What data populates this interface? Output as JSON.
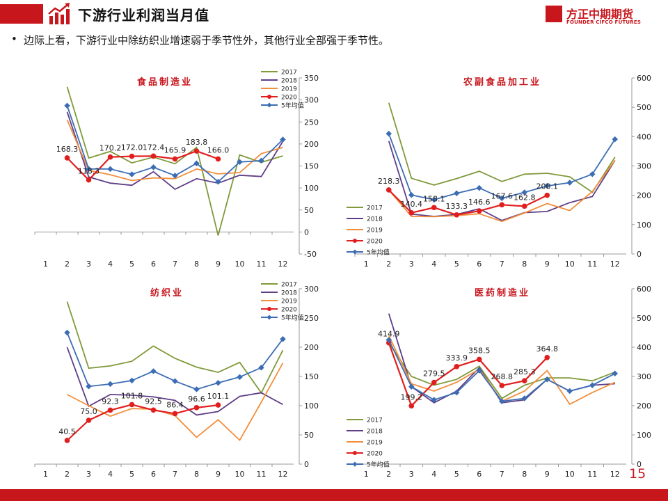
{
  "header": {
    "title": "下游行业利润当月值",
    "logo_cn": "方正中期期货",
    "logo_en": "FOUNDER CIFCO FUTURES"
  },
  "bullet": "边际上看，下游行业中除纺织业增速弱于季节性外，其他行业全部强于季节性。",
  "page_number": "15",
  "colors": {
    "2017": "#7f9a3a",
    "2018": "#5e3e86",
    "2019": "#f28e3d",
    "2020": "#e11e1e",
    "avg": "#3c6db4"
  },
  "chart_data": [
    {
      "type": "line",
      "title": "食品制造业",
      "categories": [
        "1",
        "2",
        "3",
        "4",
        "5",
        "6",
        "7",
        "8",
        "9",
        "10",
        "11",
        "12"
      ],
      "ylim": [
        -50,
        350
      ],
      "yticks": [
        "-50",
        "0",
        "50",
        "100",
        "150",
        "200",
        "250",
        "300",
        "350"
      ],
      "legend": "top-right",
      "series": [
        {
          "name": "2017",
          "values": [
            null,
            330,
            168,
            183,
            157,
            170,
            155,
            192,
            -8,
            175,
            158,
            173
          ]
        },
        {
          "name": "2018",
          "values": [
            null,
            273,
            125,
            111,
            106,
            137,
            97,
            121,
            111,
            129,
            126,
            206
          ]
        },
        {
          "name": "2019",
          "values": [
            null,
            255,
            140,
            130,
            117,
            123,
            121,
            143,
            132,
            135,
            178,
            192
          ]
        },
        {
          "name": "2020",
          "values": [
            null,
            168.3,
            118.3,
            170.2,
            172.0,
            172.4,
            165.9,
            183.8,
            166.0,
            null,
            null,
            null
          ],
          "labels": [
            "",
            "168.3",
            "118.3",
            "170.2",
            "172.0",
            "172.4",
            "165.9",
            "183.8",
            "166.0",
            "",
            "",
            ""
          ]
        },
        {
          "name": "5年均值",
          "values": [
            null,
            287,
            143,
            143,
            131,
            147,
            128,
            156,
            114,
            159,
            162,
            210
          ]
        }
      ]
    },
    {
      "type": "line",
      "title": "农副食品加工业",
      "categories": [
        "1",
        "2",
        "3",
        "4",
        "5",
        "6",
        "7",
        "8",
        "9",
        "10",
        "11",
        "12"
      ],
      "ylim": [
        0,
        600
      ],
      "yticks": [
        "0",
        "100",
        "200",
        "300",
        "400",
        "500",
        "600"
      ],
      "legend": "bottom-left",
      "series": [
        {
          "name": "2017",
          "values": [
            null,
            515,
            258,
            235,
            257,
            282,
            247,
            272,
            275,
            263,
            210,
            330
          ]
        },
        {
          "name": "2018",
          "values": [
            null,
            385,
            136,
            128,
            135,
            154,
            114,
            141,
            145,
            175,
            196,
            319
          ]
        },
        {
          "name": "2019",
          "values": [
            null,
            218,
            128,
            127,
            131,
            137,
            111,
            140,
            172,
            148,
            213,
            319
          ]
        },
        {
          "name": "2020",
          "values": [
            null,
            218.3,
            140.4,
            158.1,
            133.3,
            146.6,
            167.6,
            162.8,
            200.1,
            null,
            null,
            null
          ],
          "labels": [
            "",
            "218.3",
            "140.4",
            "158.1",
            "133.3",
            "146.6",
            "167.6",
            "162.8",
            "200.1",
            "",
            "",
            ""
          ]
        },
        {
          "name": "5年均值",
          "values": [
            null,
            410,
            201,
            185,
            207,
            225,
            190,
            210,
            232,
            243,
            272,
            391
          ]
        }
      ]
    },
    {
      "type": "line",
      "title": "纺织业",
      "categories": [
        "1",
        "2",
        "3",
        "4",
        "5",
        "6",
        "7",
        "8",
        "9",
        "10",
        "11",
        "12"
      ],
      "ylim": [
        0,
        300
      ],
      "yticks": [
        "0",
        "50",
        "100",
        "150",
        "200",
        "250",
        "300"
      ],
      "legend": "top-right",
      "series": [
        {
          "name": "2017",
          "values": [
            null,
            278,
            164,
            168,
            176,
            202,
            181,
            166,
            157,
            174,
            122,
            195
          ]
        },
        {
          "name": "2018",
          "values": [
            null,
            200,
            99,
            119,
            118,
            115,
            109,
            84,
            90,
            116,
            122,
            102
          ]
        },
        {
          "name": "2019",
          "values": [
            null,
            119,
            100,
            82,
            95,
            94,
            83,
            46,
            76,
            41,
            106,
            173
          ]
        },
        {
          "name": "2020",
          "values": [
            null,
            40.5,
            75.0,
            92.3,
            101.8,
            92.5,
            86.4,
            96.6,
            101.1,
            null,
            null,
            null
          ],
          "labels": [
            "",
            "40.5",
            "75.0",
            "92.3",
            "101.8",
            "92.5",
            "86.4",
            "96.6",
            "101.1",
            "",
            "",
            ""
          ]
        },
        {
          "name": "5年均值",
          "values": [
            null,
            225,
            133,
            137,
            143,
            159,
            142,
            128,
            139,
            149,
            165,
            214
          ]
        }
      ]
    },
    {
      "type": "line",
      "title": "医药制造业",
      "categories": [
        "1",
        "2",
        "3",
        "4",
        "5",
        "6",
        "7",
        "8",
        "9",
        "10",
        "11",
        "12"
      ],
      "ylim": [
        0,
        600
      ],
      "yticks": [
        "0",
        "100",
        "200",
        "300",
        "400",
        "500",
        "600"
      ],
      "legend": "bottom-left",
      "series": [
        {
          "name": "2017",
          "values": [
            null,
            415,
            300,
            270,
            290,
            335,
            225,
            270,
            295,
            295,
            285,
            315
          ]
        },
        {
          "name": "2018",
          "values": [
            null,
            515,
            265,
            210,
            250,
            330,
            210,
            220,
            290,
            250,
            270,
            275
          ]
        },
        {
          "name": "2019",
          "values": [
            null,
            440,
            275,
            250,
            280,
            325,
            215,
            250,
            320,
            205,
            245,
            280
          ]
        },
        {
          "name": "2020",
          "values": [
            null,
            414.9,
            199.2,
            279.5,
            333.9,
            358.5,
            268.8,
            285.3,
            364.8,
            null,
            null,
            null
          ],
          "labels": [
            "",
            "414.9",
            "199.2",
            "279.5",
            "333.9",
            "358.5",
            "268.8",
            "285.3",
            "364.8",
            "",
            "",
            ""
          ]
        },
        {
          "name": "5年均值",
          "values": [
            null,
            425,
            265,
            220,
            245,
            320,
            215,
            225,
            290,
            250,
            270,
            310
          ]
        }
      ]
    }
  ]
}
